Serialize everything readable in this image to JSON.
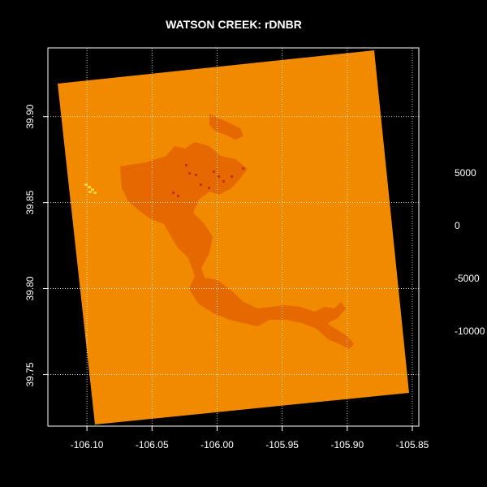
{
  "map": {
    "title": "WATSON CREEK: rDNBR",
    "colors": {
      "background": "#000000",
      "frame": "#ffffff",
      "grid": "#ffffff",
      "raster_base": "#f28a00",
      "raster_burn": "#e56800",
      "raster_hot": "#c83200",
      "raster_highlight": "#ffd23a"
    },
    "x_axis": {
      "range": [
        -106.13,
        -105.845
      ],
      "ticks": [
        {
          "value": -106.1,
          "label": "-106.10"
        },
        {
          "value": -106.05,
          "label": "-106.05"
        },
        {
          "value": -106.0,
          "label": "-106.00"
        },
        {
          "value": -105.95,
          "label": "-105.95"
        },
        {
          "value": -105.9,
          "label": "-105.90"
        },
        {
          "value": -105.85,
          "label": "-105.85"
        }
      ]
    },
    "y_axis": {
      "range": [
        39.72,
        39.94
      ],
      "ticks": [
        {
          "value": 39.75,
          "label": "39.75"
        },
        {
          "value": 39.8,
          "label": "39.80"
        },
        {
          "value": 39.85,
          "label": "39.85"
        },
        {
          "value": 39.9,
          "label": "39.90"
        }
      ]
    },
    "legend": {
      "position": "right",
      "labels": [
        "5000",
        "0",
        "-5000",
        "-10000"
      ]
    }
  }
}
